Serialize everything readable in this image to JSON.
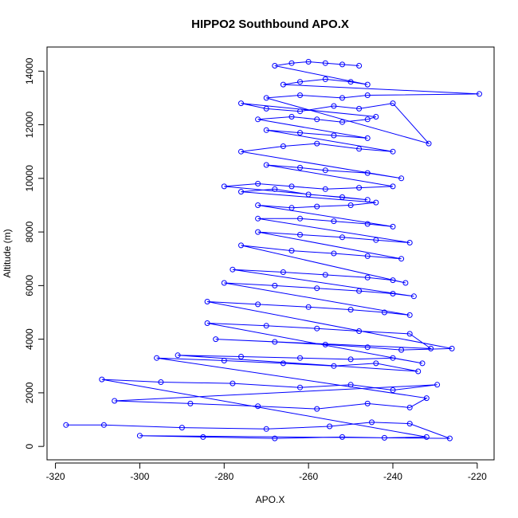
{
  "chart_data": {
    "type": "scatter",
    "title": "HIPPO2 Southbound APO.X",
    "xlabel": "APO.X",
    "ylabel": "Altitude (m)",
    "xlim": [
      -322,
      -216
    ],
    "ylim": [
      -500,
      14900
    ],
    "xticks": [
      -320,
      -300,
      -280,
      -260,
      -240,
      -220
    ],
    "yticks": [
      0,
      2000,
      4000,
      6000,
      8000,
      10000,
      12000,
      14000
    ],
    "xtick_labels": [
      "-320",
      "-300",
      "-280",
      "-260",
      "-240",
      "-220"
    ],
    "ytick_labels": [
      "0",
      "2000",
      "4000",
      "6000",
      "8000",
      "10000",
      "12000",
      "14000"
    ],
    "series_color": "#0000ff",
    "grid": false,
    "series": [
      {
        "style": "points-and-lines",
        "x": [
          -317.5,
          -308.5,
          -290,
          -270,
          -255,
          -245,
          -236,
          -226.5,
          -300,
          -285,
          -268,
          -252,
          -242,
          -232,
          -309,
          -295,
          -278,
          -262,
          -250,
          -240,
          -229.5,
          -306,
          -288,
          -272,
          -258,
          -246,
          -236,
          -232,
          -296,
          -280,
          -266,
          -254,
          -244,
          -234,
          -291,
          -276,
          -262,
          -250,
          -240,
          -233,
          -284,
          -270,
          -258,
          -248,
          -236,
          -231,
          -282,
          -268,
          -256,
          -246,
          -238,
          -226,
          -284,
          -272,
          -260,
          -250,
          -242,
          -236,
          -280,
          -268,
          -258,
          -248,
          -240,
          -235,
          -278,
          -266,
          -256,
          -246,
          -240,
          -237,
          -276,
          -264,
          -254,
          -246,
          -238,
          -272,
          -262,
          -252,
          -244,
          -236,
          -272,
          -262,
          -254,
          -246,
          -240,
          -272,
          -264,
          -258,
          -250,
          -244,
          -276,
          -268,
          -260,
          -252,
          -246,
          -280,
          -272,
          -264,
          -256,
          -248,
          -240,
          -270,
          -262,
          -256,
          -246,
          -238,
          -276,
          -266,
          -258,
          -248,
          -240,
          -270,
          -262,
          -254,
          -246,
          -272,
          -264,
          -258,
          -252,
          -246,
          -244,
          -276,
          -270,
          -262,
          -254,
          -248,
          -240,
          -231.5,
          -270,
          -262,
          -252,
          -246,
          -219.5,
          -266,
          -262,
          -256,
          -250,
          -246,
          -268,
          -264,
          -260,
          -256,
          -252,
          -248
        ],
        "y": [
          800,
          800,
          700,
          650,
          750,
          900,
          850,
          300,
          400,
          350,
          300,
          350,
          320,
          350,
          2500,
          2400,
          2350,
          2200,
          2300,
          2100,
          2300,
          1700,
          1600,
          1500,
          1400,
          1600,
          1450,
          1800,
          3300,
          3200,
          3100,
          3000,
          3100,
          2800,
          3400,
          3350,
          3300,
          3250,
          3300,
          3100,
          4600,
          4500,
          4400,
          4300,
          4200,
          3650,
          4000,
          3900,
          3800,
          3700,
          3600,
          3650,
          5400,
          5300,
          5200,
          5100,
          5000,
          4900,
          6100,
          6000,
          5900,
          5800,
          5700,
          5600,
          6600,
          6500,
          6400,
          6300,
          6200,
          6100,
          7500,
          7300,
          7200,
          7100,
          7000,
          8000,
          7900,
          7800,
          7700,
          7600,
          8500,
          8500,
          8400,
          8300,
          8200,
          9000,
          8900,
          8950,
          9000,
          9100,
          9500,
          9600,
          9400,
          9300,
          9200,
          9700,
          9800,
          9700,
          9600,
          9650,
          9700,
          10500,
          10400,
          10300,
          10200,
          10000,
          11000,
          11200,
          11300,
          11100,
          11000,
          11800,
          11700,
          11600,
          11500,
          12200,
          12300,
          12200,
          12100,
          12200,
          12300,
          12800,
          12600,
          12500,
          12700,
          12600,
          12800,
          11300,
          13000,
          13100,
          13000,
          13100,
          13150,
          13500,
          13600,
          13700,
          13600,
          13500,
          14200,
          14300,
          14350,
          14300,
          14250,
          14200
        ]
      }
    ]
  }
}
